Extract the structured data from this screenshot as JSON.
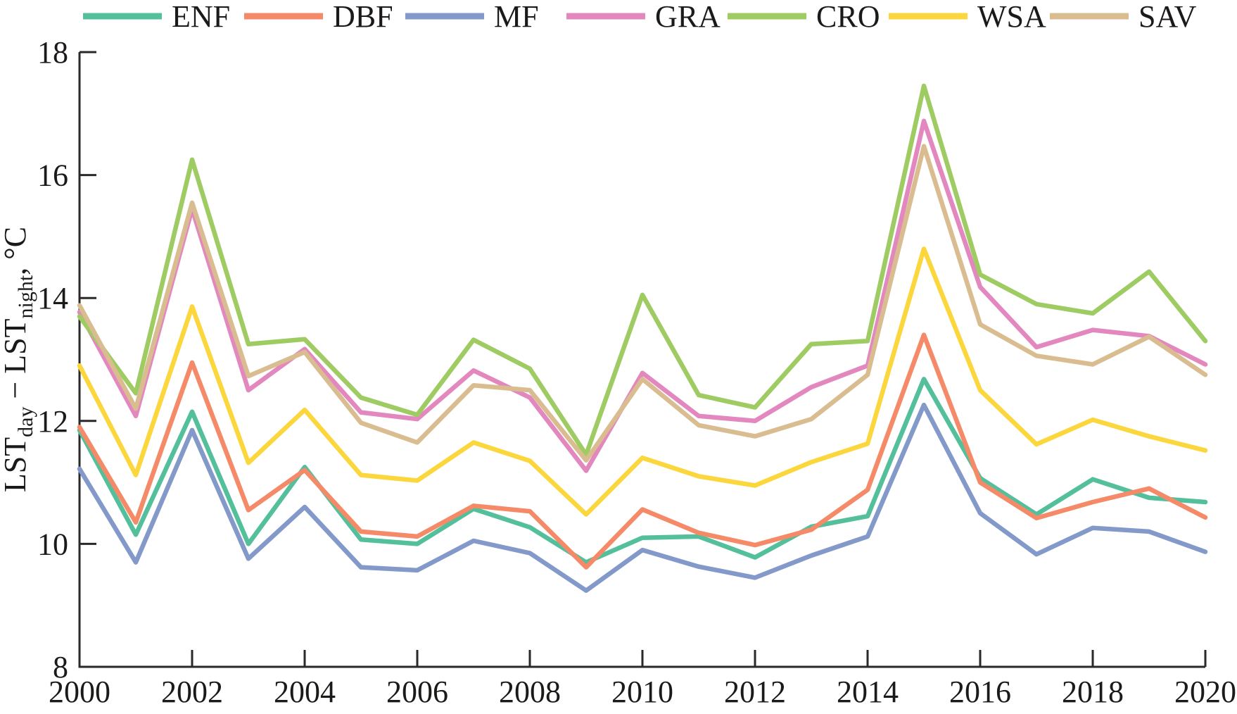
{
  "figure": {
    "kind": "line-chart-figure",
    "background": "#ffffff",
    "axis_color": "#2b2829",
    "text_color": "#1c1a19"
  },
  "chart_data": {
    "type": "line",
    "title": "",
    "xlabel": "",
    "ylabel": "LSTday − LSTnight, °C",
    "ylabel_parts": [
      {
        "text": "LST",
        "sub": false
      },
      {
        "text": "day",
        "sub": true
      },
      {
        "text": " − LST",
        "sub": false
      },
      {
        "text": "night",
        "sub": true
      },
      {
        "text": ", °C",
        "sub": false
      }
    ],
    "xlim": [
      2000,
      2020
    ],
    "ylim": [
      8,
      18
    ],
    "xticks": [
      2000,
      2002,
      2004,
      2006,
      2008,
      2010,
      2012,
      2014,
      2016,
      2018,
      2020
    ],
    "yticks": [
      8,
      10,
      12,
      14,
      16,
      18
    ],
    "grid": false,
    "legend_position": "top",
    "x": [
      2000,
      2001,
      2002,
      2003,
      2004,
      2005,
      2006,
      2007,
      2008,
      2009,
      2010,
      2011,
      2012,
      2013,
      2014,
      2015,
      2016,
      2017,
      2018,
      2019,
      2020
    ],
    "series": [
      {
        "name": "ENF",
        "color": "#54bf9b",
        "values": [
          11.85,
          10.15,
          12.15,
          10.0,
          11.25,
          10.07,
          10.0,
          10.57,
          10.27,
          9.7,
          10.1,
          10.12,
          9.78,
          10.28,
          10.45,
          12.68,
          11.07,
          10.48,
          11.05,
          10.75,
          10.68
        ]
      },
      {
        "name": "DBF",
        "color": "#f58a68",
        "values": [
          11.9,
          10.35,
          12.95,
          10.55,
          11.2,
          10.2,
          10.12,
          10.62,
          10.53,
          9.62,
          10.56,
          10.18,
          9.98,
          10.23,
          10.88,
          13.4,
          11.0,
          10.42,
          10.68,
          10.9,
          10.43
        ]
      },
      {
        "name": "MF",
        "color": "#8399c9",
        "values": [
          11.22,
          9.7,
          11.85,
          9.76,
          10.6,
          9.62,
          9.57,
          10.05,
          9.85,
          9.24,
          9.9,
          9.63,
          9.45,
          9.81,
          10.12,
          12.26,
          10.5,
          9.83,
          10.26,
          10.2,
          9.87
        ]
      },
      {
        "name": "GRA",
        "color": "#e288bf",
        "values": [
          13.77,
          12.08,
          15.45,
          12.5,
          13.17,
          12.14,
          12.03,
          12.82,
          12.38,
          11.19,
          12.78,
          12.08,
          12.0,
          12.55,
          12.9,
          16.88,
          14.18,
          13.2,
          13.48,
          13.38,
          12.92
        ]
      },
      {
        "name": "CRO",
        "color": "#9ecb62",
        "values": [
          13.7,
          12.45,
          16.25,
          13.25,
          13.33,
          12.38,
          12.1,
          13.32,
          12.85,
          11.45,
          14.05,
          12.42,
          12.22,
          13.25,
          13.3,
          17.45,
          14.38,
          13.9,
          13.75,
          14.43,
          13.3
        ]
      },
      {
        "name": "WSA",
        "color": "#fbd73d",
        "values": [
          12.9,
          11.12,
          13.86,
          11.32,
          12.18,
          11.12,
          11.03,
          11.65,
          11.35,
          10.48,
          11.4,
          11.1,
          10.95,
          11.33,
          11.63,
          14.8,
          12.5,
          11.62,
          12.02,
          11.75,
          11.52
        ]
      },
      {
        "name": "SAV",
        "color": "#d9bd90",
        "values": [
          13.88,
          12.2,
          15.55,
          12.73,
          13.12,
          11.97,
          11.65,
          12.58,
          12.5,
          11.36,
          12.68,
          11.93,
          11.75,
          12.03,
          12.75,
          16.47,
          13.57,
          13.06,
          12.92,
          13.37,
          12.75
        ]
      }
    ]
  }
}
